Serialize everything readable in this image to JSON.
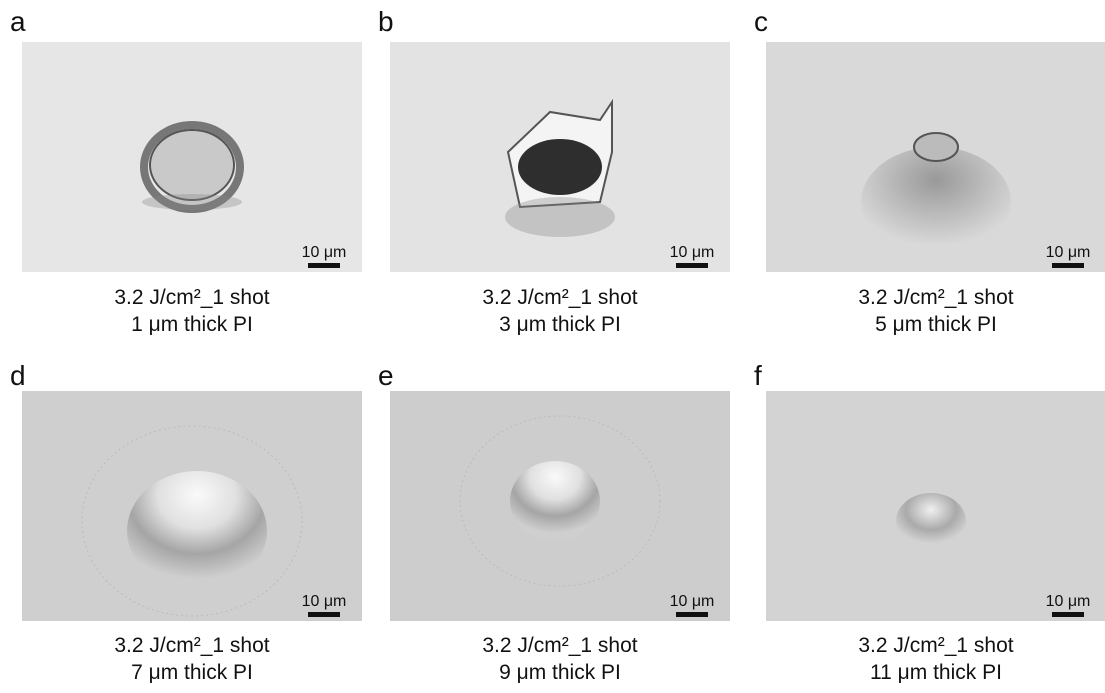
{
  "panels": [
    {
      "label": "a",
      "scale_bar": "10 μm",
      "caption": [
        "3.2 J/cm²_1 shot",
        "1 μm thick PI"
      ]
    },
    {
      "label": "b",
      "scale_bar": "10 μm",
      "caption": [
        "3.2 J/cm²_1 shot",
        "3 μm thick PI"
      ]
    },
    {
      "label": "c",
      "scale_bar": "10 μm",
      "caption": [
        "3.2 J/cm²_1 shot",
        "5 μm thick PI"
      ]
    },
    {
      "label": "d",
      "scale_bar": "10 μm",
      "caption": [
        "3.2 J/cm²_1 shot",
        "7 μm thick PI"
      ]
    },
    {
      "label": "e",
      "scale_bar": "10 μm",
      "caption": [
        "3.2 J/cm²_1 shot",
        "9 μm thick PI"
      ]
    },
    {
      "label": "f",
      "scale_bar": "10 μm",
      "caption": [
        "3.2 J/cm²_1 shot",
        "11 μm thick PI"
      ]
    }
  ]
}
